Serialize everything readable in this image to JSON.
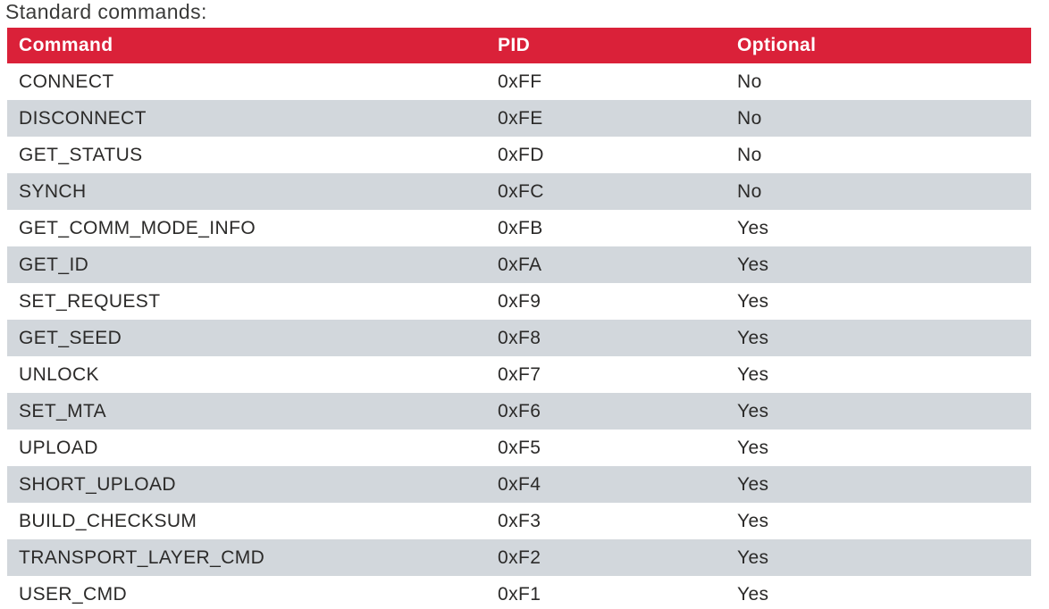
{
  "page_title": "Standard commands:",
  "colors": {
    "header_bg": "#DA2139",
    "row_alt_bg": "#D2D7DC",
    "text": "#2B2A29",
    "header_text": "#FFFFFF",
    "title": "#3A3A39"
  },
  "table": {
    "columns": [
      "Command",
      "PID",
      "Optional"
    ],
    "rows": [
      {
        "command": "CONNECT",
        "pid": "0xFF",
        "optional": "No"
      },
      {
        "command": "DISCONNECT",
        "pid": "0xFE",
        "optional": "No"
      },
      {
        "command": "GET_STATUS",
        "pid": "0xFD",
        "optional": "No"
      },
      {
        "command": "SYNCH",
        "pid": "0xFC",
        "optional": "No"
      },
      {
        "command": "GET_COMM_MODE_INFO",
        "pid": "0xFB",
        "optional": "Yes"
      },
      {
        "command": "GET_ID",
        "pid": "0xFA",
        "optional": "Yes"
      },
      {
        "command": "SET_REQUEST",
        "pid": "0xF9",
        "optional": "Yes"
      },
      {
        "command": "GET_SEED",
        "pid": "0xF8",
        "optional": "Yes"
      },
      {
        "command": "UNLOCK",
        "pid": "0xF7",
        "optional": "Yes"
      },
      {
        "command": "SET_MTA",
        "pid": "0xF6",
        "optional": "Yes"
      },
      {
        "command": "UPLOAD",
        "pid": "0xF5",
        "optional": "Yes"
      },
      {
        "command": "SHORT_UPLOAD",
        "pid": "0xF4",
        "optional": "Yes"
      },
      {
        "command": "BUILD_CHECKSUM",
        "pid": "0xF3",
        "optional": "Yes"
      },
      {
        "command": "TRANSPORT_LAYER_CMD",
        "pid": "0xF2",
        "optional": "Yes"
      },
      {
        "command": "USER_CMD",
        "pid": "0xF1",
        "optional": "Yes"
      }
    ]
  }
}
